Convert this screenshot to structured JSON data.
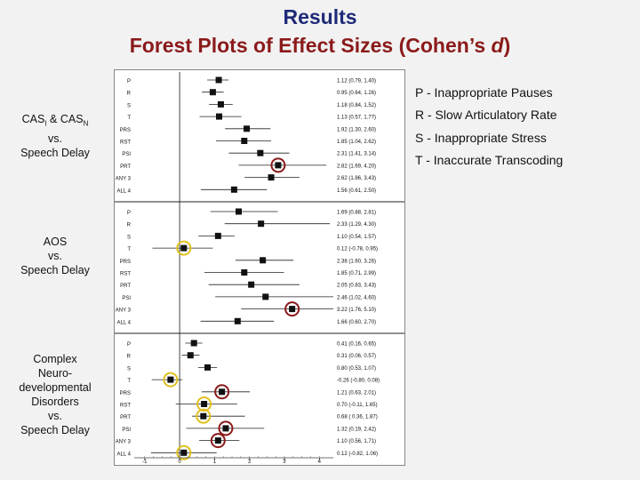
{
  "title": "Results",
  "subtitle_prefix": "Forest Plots of Effect Sizes (Cohen’s ",
  "subtitle_italic": "d",
  "subtitle_suffix": ")",
  "legend": [
    "P - Inappropriate Pauses",
    "R - Slow Articulatory Rate",
    "S - Inappropriate Stress",
    "T - Inaccurate Transcoding"
  ],
  "group_labels": [
    {
      "line1": "CAS",
      "sub": "I",
      "line1b": " & CAS",
      "sub2": "N",
      "rest": [
        "vs.",
        "Speech Delay"
      ]
    },
    {
      "rest": [
        "AOS",
        "vs.",
        "Speech Delay"
      ]
    },
    {
      "rest": [
        "Complex",
        "Neuro-",
        "developmental",
        "Disorders",
        "vs.",
        "Speech Delay"
      ]
    }
  ],
  "colors": {
    "title": "#1f2a78",
    "subtitle": "#8b1a1a",
    "red_circle": "#8b1a1a",
    "yellow_circle": "#e0c020",
    "marker": "#111111"
  },
  "chart_data": {
    "type": "forest",
    "x_ticks": [
      "-1",
      "0",
      "1",
      "2",
      "3",
      "4"
    ],
    "xlim": [
      -1.3,
      4.4
    ],
    "groups": [
      {
        "rows": [
          {
            "label": "P",
            "d": 1.12,
            "lo": 0.79,
            "hi": 1.4,
            "text": "1.12 (0.79, 1.40)",
            "circle": ""
          },
          {
            "label": "R",
            "d": 0.95,
            "lo": 0.64,
            "hi": 1.26,
            "text": "0.95 (0.64, 1.26)",
            "circle": ""
          },
          {
            "label": "S",
            "d": 1.18,
            "lo": 0.84,
            "hi": 1.52,
            "text": "1.18 (0.84, 1.52)",
            "circle": ""
          },
          {
            "label": "T",
            "d": 1.13,
            "lo": 0.57,
            "hi": 1.77,
            "text": "1.13 (0.57, 1.77)",
            "circle": ""
          },
          {
            "label": "PRS",
            "d": 1.92,
            "lo": 1.3,
            "hi": 2.6,
            "text": "1.92 (1.30, 2.60)",
            "circle": ""
          },
          {
            "label": "RST",
            "d": 1.85,
            "lo": 1.04,
            "hi": 2.62,
            "text": "1.85 (1.04, 2.62)",
            "circle": ""
          },
          {
            "label": "PSI",
            "d": 2.31,
            "lo": 1.41,
            "hi": 3.14,
            "text": "2.31 (1.41, 3.14)",
            "circle": ""
          },
          {
            "label": "PRT",
            "d": 2.82,
            "lo": 1.69,
            "hi": 4.2,
            "text": "2.82 (1.69, 4.20)",
            "circle": "red"
          },
          {
            "label": "ANY 3",
            "d": 2.62,
            "lo": 1.86,
            "hi": 3.43,
            "text": "2.62 (1.86, 3.43)",
            "circle": ""
          },
          {
            "label": "ALL 4",
            "d": 1.56,
            "lo": 0.61,
            "hi": 2.5,
            "text": "1.56 (0.61, 2.50)",
            "circle": ""
          }
        ]
      },
      {
        "rows": [
          {
            "label": "P",
            "d": 1.69,
            "lo": 0.88,
            "hi": 2.81,
            "text": "1.69 (0.88, 2.81)",
            "circle": ""
          },
          {
            "label": "R",
            "d": 2.33,
            "lo": 1.29,
            "hi": 4.3,
            "text": "2.33 (1.29, 4.30)",
            "circle": ""
          },
          {
            "label": "S",
            "d": 1.1,
            "lo": 0.54,
            "hi": 1.57,
            "text": "1.10 (0.54, 1.57)",
            "circle": ""
          },
          {
            "label": "T",
            "d": 0.12,
            "lo": -0.78,
            "hi": 0.95,
            "text": "0.12 (-0.78, 0.95)",
            "circle": "yellow"
          },
          {
            "label": "PRS",
            "d": 2.38,
            "lo": 1.6,
            "hi": 3.26,
            "text": "2.38 (1.60, 3.26)",
            "circle": ""
          },
          {
            "label": "RST",
            "d": 1.85,
            "lo": 0.71,
            "hi": 2.99,
            "text": "1.85 (0.71, 2.99)",
            "circle": ""
          },
          {
            "label": "PRT",
            "d": 2.05,
            "lo": 0.83,
            "hi": 3.43,
            "text": "2.05 (0.83, 3.43)",
            "circle": ""
          },
          {
            "label": "PSI",
            "d": 2.46,
            "lo": 1.02,
            "hi": 4.6,
            "text": "2.46 (1.02, 4.60)",
            "circle": ""
          },
          {
            "label": "ANY 3",
            "d": 3.22,
            "lo": 1.76,
            "hi": 5.1,
            "text": "3.22 (1.76, 5.10)",
            "circle": "red"
          },
          {
            "label": "ALL 4",
            "d": 1.66,
            "lo": 0.6,
            "hi": 2.7,
            "text": "1.66 (0.60, 2.70)",
            "circle": ""
          }
        ]
      },
      {
        "rows": [
          {
            "label": "P",
            "d": 0.41,
            "lo": 0.16,
            "hi": 0.65,
            "text": "0.41 (0.16, 0.65)",
            "circle": ""
          },
          {
            "label": "R",
            "d": 0.31,
            "lo": 0.06,
            "hi": 0.57,
            "text": "0.31 (0.06, 0.57)",
            "circle": ""
          },
          {
            "label": "S",
            "d": 0.8,
            "lo": 0.53,
            "hi": 1.07,
            "text": "0.80 (0.53, 1.07)",
            "circle": ""
          },
          {
            "label": "T",
            "d": -0.26,
            "lo": -0.8,
            "hi": 0.08,
            "text": "-0.26 (-0.80, 0.08)",
            "circle": "yellow"
          },
          {
            "label": "PRS",
            "d": 1.21,
            "lo": 0.63,
            "hi": 2.01,
            "text": "1.21 (0.63, 2.01)",
            "circle": "red"
          },
          {
            "label": "RST",
            "d": 0.7,
            "lo": -0.11,
            "hi": 1.65,
            "text": "0.70 (-0.11, 1.65)",
            "circle": "yellow"
          },
          {
            "label": "PRT",
            "d": 0.68,
            "lo": 0.36,
            "hi": 1.87,
            "text": "0.68 ( 0.36, 1.87)",
            "circle": "yellow"
          },
          {
            "label": "PSI",
            "d": 1.32,
            "lo": 0.19,
            "hi": 2.42,
            "text": "1.32 (0.19, 2.42)",
            "circle": "red"
          },
          {
            "label": "ANY 3",
            "d": 1.1,
            "lo": 0.56,
            "hi": 1.71,
            "text": "1.10 (0.56, 1.71)",
            "circle": "red"
          },
          {
            "label": "ALL 4",
            "d": 0.12,
            "lo": -0.82,
            "hi": 1.06,
            "text": "0.12 (-0.82, 1.06)",
            "circle": "yellow"
          }
        ]
      }
    ]
  }
}
